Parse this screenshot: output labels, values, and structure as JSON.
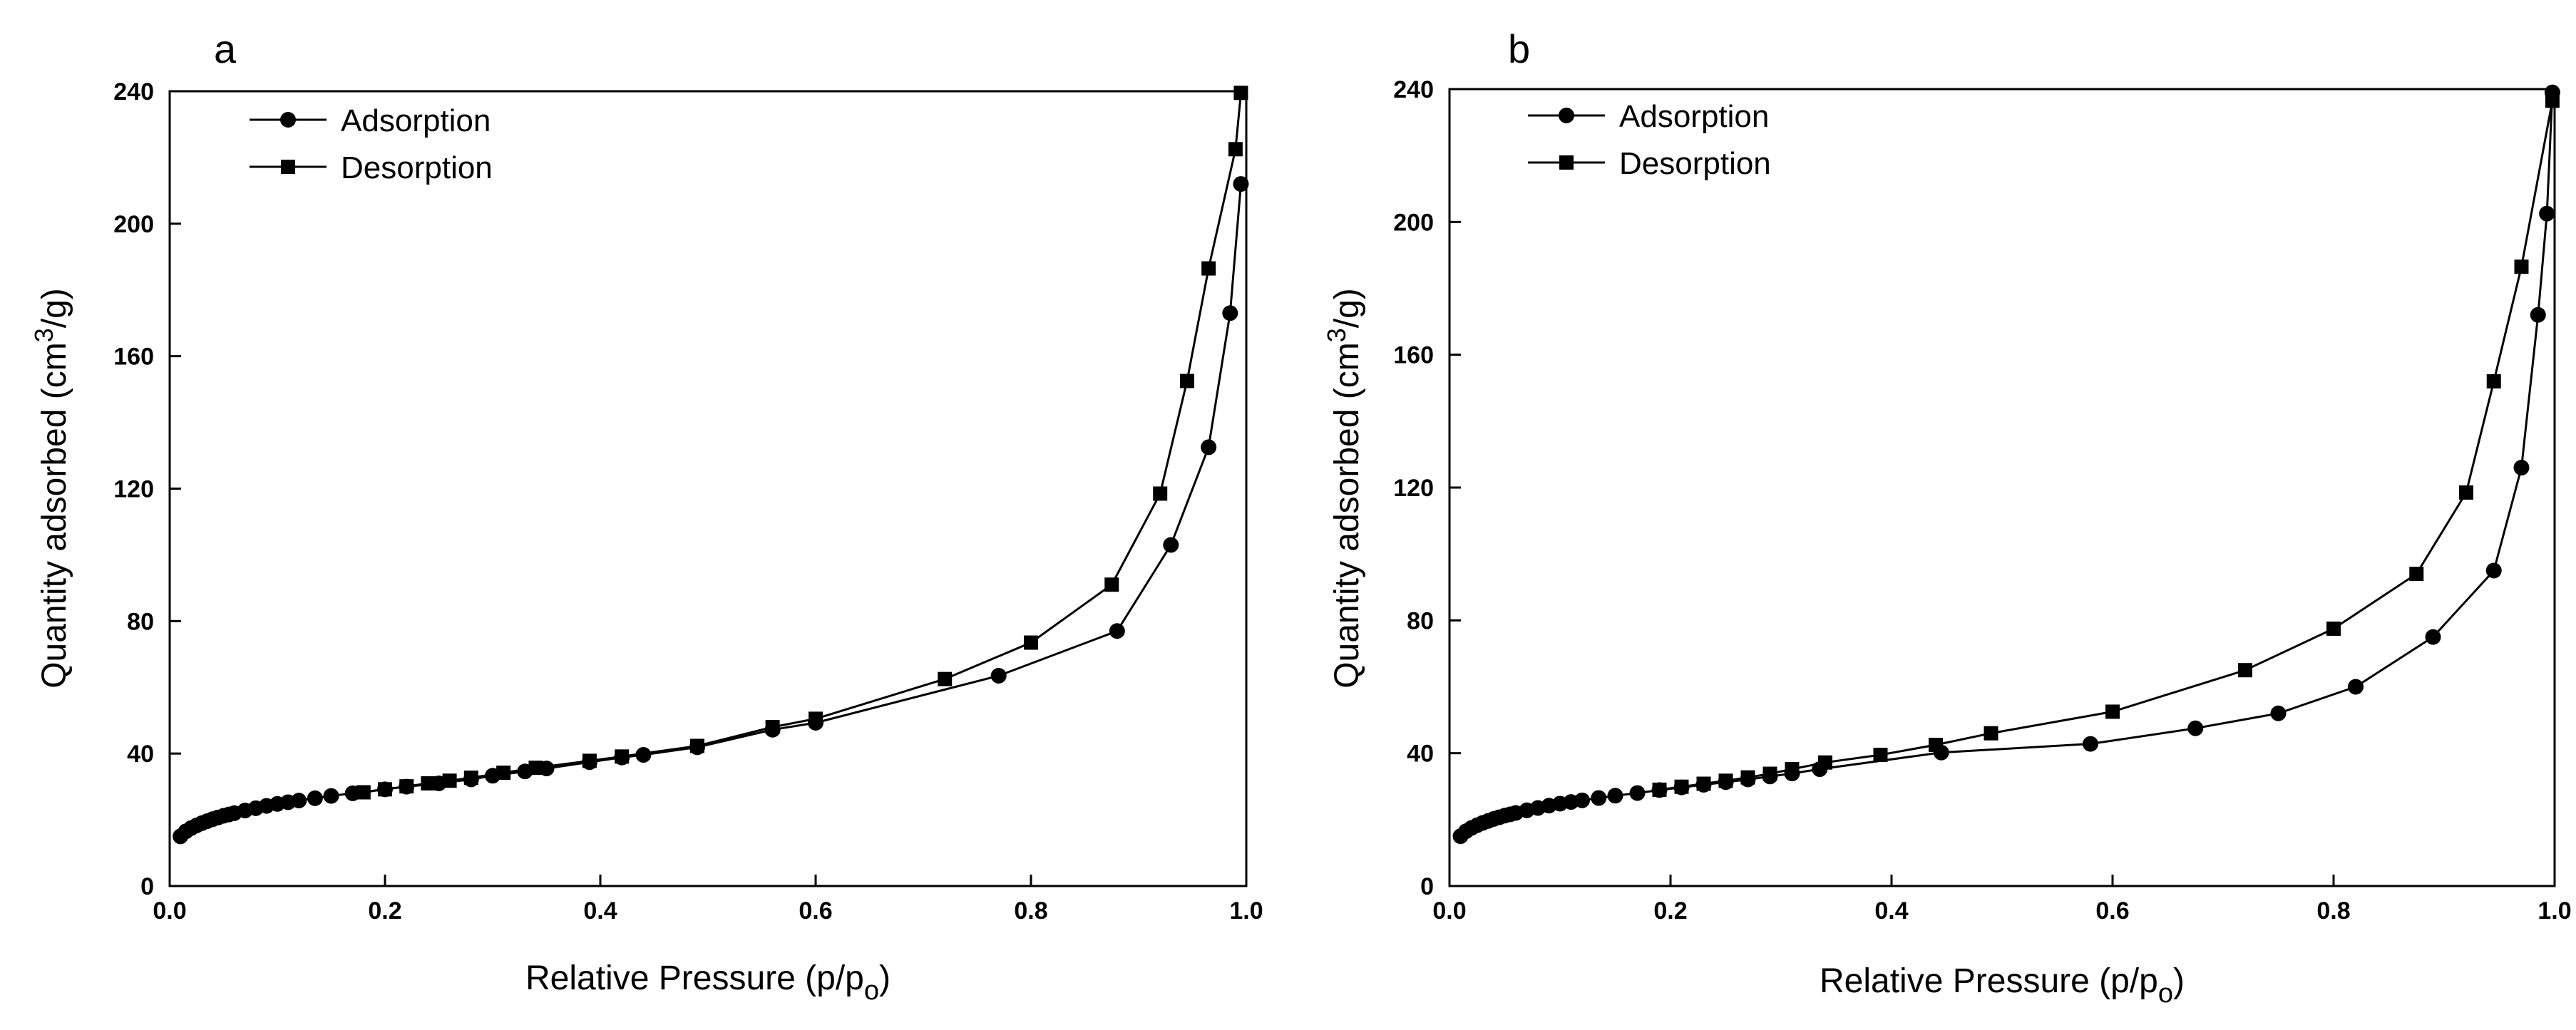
{
  "chart_data": [
    {
      "panel_label": "a",
      "type": "line",
      "xlabel": "Relative Pressure (p/p",
      "xlabel_sub": "o",
      "xlabel_close": ")",
      "ylabel": "Quantity adsorbed (cm",
      "ylabel_sup": "3",
      "ylabel_close": "/g)",
      "xlim": [
        0,
        1.0
      ],
      "ylim": [
        0,
        240
      ],
      "xticks": [
        "0.0",
        "0.2",
        "0.4",
        "0.6",
        "0.8",
        "1.0"
      ],
      "yticks": [
        "0",
        "40",
        "80",
        "120",
        "160",
        "200",
        "240"
      ],
      "legend": [
        "Adsorption",
        "Desorption"
      ],
      "series": [
        {
          "name": "Adsorption",
          "marker": "circle",
          "x": [
            0.01,
            0.015,
            0.02,
            0.025,
            0.03,
            0.035,
            0.04,
            0.045,
            0.05,
            0.055,
            0.06,
            0.07,
            0.08,
            0.09,
            0.1,
            0.11,
            0.12,
            0.135,
            0.15,
            0.17,
            0.2,
            0.22,
            0.25,
            0.28,
            0.3,
            0.33,
            0.35,
            0.39,
            0.42,
            0.44,
            0.49,
            0.56,
            0.6,
            0.77,
            0.88,
            0.93,
            0.965,
            0.985,
            0.995
          ],
          "y": [
            15,
            16.5,
            17.5,
            18.3,
            19,
            19.6,
            20.2,
            20.7,
            21.2,
            21.6,
            22,
            22.8,
            23.5,
            24.2,
            24.8,
            25.3,
            25.8,
            26.5,
            27.2,
            28,
            29.2,
            30,
            31,
            32.2,
            33.3,
            34.6,
            35.5,
            37.4,
            38.8,
            39.6,
            41.9,
            47.2,
            49.3,
            63.5,
            77,
            103,
            132.5,
            173,
            212
          ]
        },
        {
          "name": "Desorption",
          "marker": "square",
          "x": [
            0.995,
            0.99,
            0.965,
            0.945,
            0.92,
            0.875,
            0.8,
            0.72,
            0.6,
            0.56,
            0.49,
            0.42,
            0.39,
            0.34,
            0.31,
            0.28,
            0.26,
            0.24,
            0.22,
            0.2,
            0.18
          ],
          "y": [
            239.5,
            222.5,
            186.5,
            152.5,
            118.5,
            91,
            73.5,
            62.5,
            50.5,
            48,
            42.3,
            39.1,
            37.8,
            35.7,
            34.2,
            32.7,
            31.8,
            31,
            30.1,
            29.2,
            28.3
          ]
        }
      ]
    },
    {
      "panel_label": "b",
      "type": "line",
      "xlabel": "Relative Pressure (p/p",
      "xlabel_sub": "o",
      "xlabel_close": ")",
      "ylabel": "Quantity adsorbed (cm",
      "ylabel_sup": "3",
      "ylabel_close": "/g)",
      "xlim": [
        0,
        1.0
      ],
      "ylim": [
        0,
        240
      ],
      "xticks": [
        "0.0",
        "0.2",
        "0.4",
        "0.6",
        "0.8",
        "1.0"
      ],
      "yticks": [
        "0",
        "40",
        "80",
        "120",
        "160",
        "200",
        "240"
      ],
      "legend": [
        "Adsorption",
        "Desorption"
      ],
      "series": [
        {
          "name": "Adsorption",
          "marker": "circle",
          "x": [
            0.01,
            0.015,
            0.02,
            0.025,
            0.03,
            0.035,
            0.04,
            0.045,
            0.05,
            0.055,
            0.06,
            0.07,
            0.08,
            0.09,
            0.1,
            0.11,
            0.12,
            0.135,
            0.15,
            0.17,
            0.19,
            0.21,
            0.23,
            0.25,
            0.27,
            0.29,
            0.31,
            0.335,
            0.445,
            0.58,
            0.675,
            0.75,
            0.82,
            0.89,
            0.945,
            0.97,
            0.985,
            0.993,
            0.998
          ],
          "y": [
            15,
            16.5,
            17.5,
            18.3,
            19,
            19.6,
            20.2,
            20.7,
            21.2,
            21.6,
            22,
            22.8,
            23.5,
            24.2,
            24.8,
            25.3,
            25.8,
            26.5,
            27.2,
            28,
            28.9,
            29.7,
            30.5,
            31.3,
            32.1,
            33,
            33.9,
            35.2,
            40.2,
            42.8,
            47.5,
            52,
            60,
            75,
            95,
            126,
            172,
            202.5,
            239
          ]
        },
        {
          "name": "Desorption",
          "marker": "square",
          "x": [
            0.998,
            0.97,
            0.945,
            0.92,
            0.875,
            0.8,
            0.72,
            0.6,
            0.49,
            0.44,
            0.39,
            0.34,
            0.31,
            0.29,
            0.27,
            0.25,
            0.23,
            0.21,
            0.19
          ],
          "y": [
            236.5,
            186.5,
            152,
            118.5,
            94,
            77.5,
            65,
            52.5,
            46,
            42.5,
            39.5,
            37.2,
            35.2,
            33.8,
            32.7,
            31.7,
            30.8,
            29.9,
            29
          ]
        }
      ]
    }
  ]
}
